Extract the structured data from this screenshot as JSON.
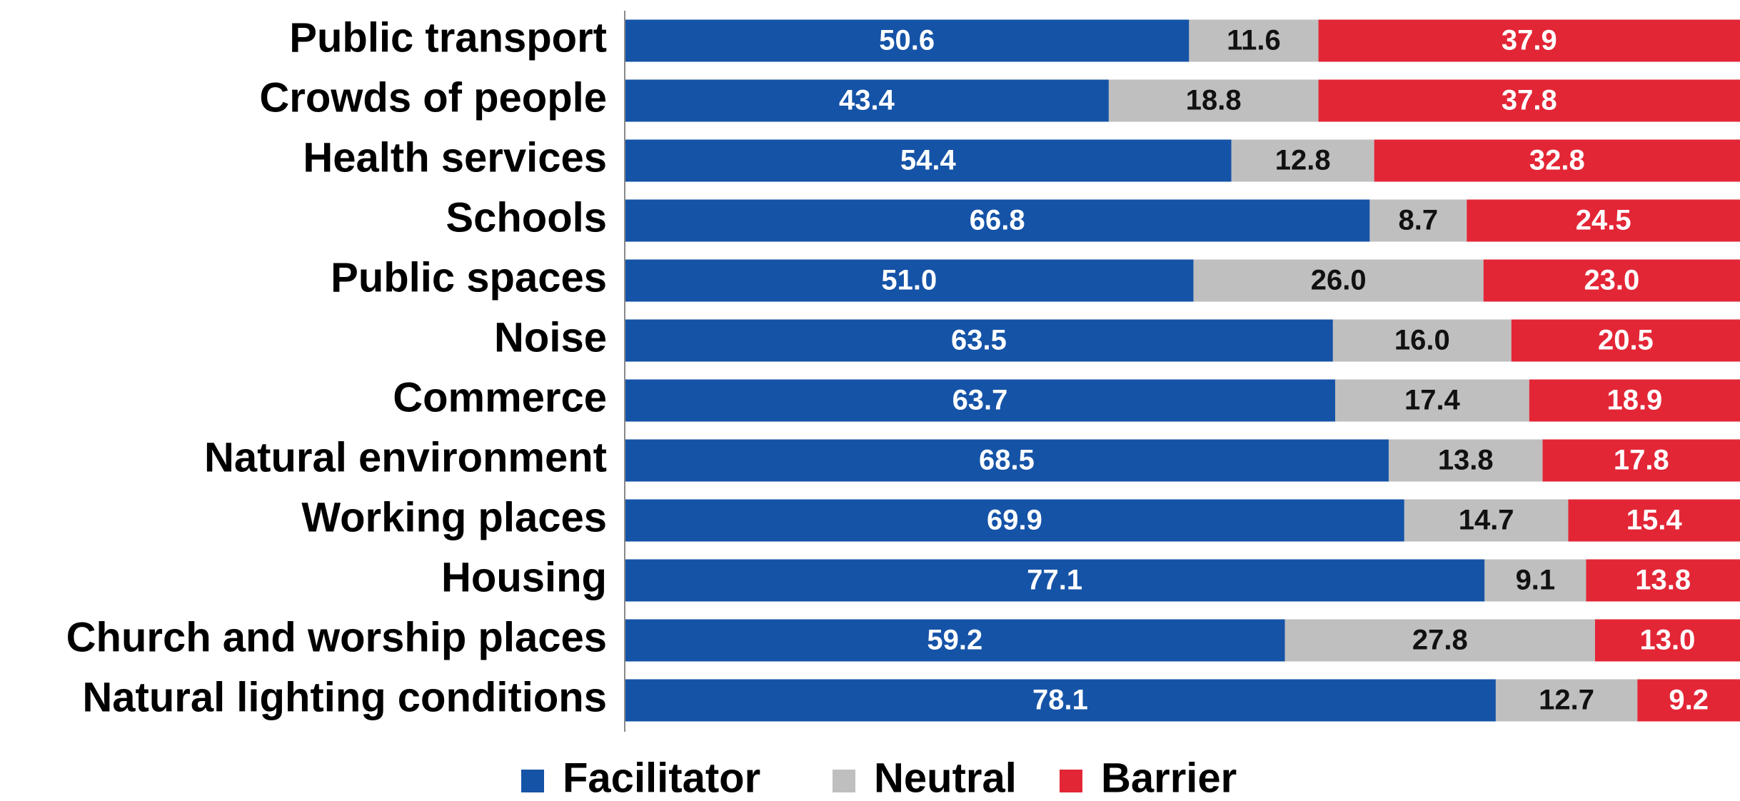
{
  "chart_data": {
    "type": "stacked-bar-horizontal",
    "categories": [
      "Public transport",
      "Crowds of people",
      "Health services",
      "Schools",
      "Public spaces",
      "Noise",
      "Commerce",
      "Natural environment",
      "Working places",
      "Housing",
      "Church and worship places",
      "Natural lighting conditions"
    ],
    "xlim": [
      0,
      100
    ],
    "series": [
      {
        "name": "Facilitator",
        "color": "#1553a7",
        "values": [
          50.6,
          43.4,
          54.4,
          66.8,
          51.0,
          63.5,
          63.7,
          68.5,
          69.9,
          77.1,
          59.2,
          78.1
        ],
        "value_labels": [
          "50.6",
          "43.4",
          "54.4",
          "66.8",
          "51.0",
          "63.5",
          "63.7",
          "68.5",
          "69.9",
          "77.1",
          "59.2",
          "78.1"
        ]
      },
      {
        "name": "Neutral",
        "color": "#bfbfbf",
        "values": [
          11.6,
          18.8,
          12.8,
          8.7,
          26.0,
          16.0,
          17.4,
          13.8,
          14.7,
          9.1,
          27.8,
          12.7
        ],
        "value_labels": [
          "11.6",
          "18.8",
          "12.8",
          "8.7",
          "26.0",
          "16.0",
          "17.4",
          "13.8",
          "14.7",
          "9.1",
          "27.8",
          "12.7"
        ]
      },
      {
        "name": "Barrier",
        "color": "#e32636",
        "values": [
          37.9,
          37.8,
          32.8,
          24.5,
          23.0,
          20.5,
          18.9,
          17.8,
          15.4,
          13.8,
          13.0,
          9.2
        ],
        "value_labels": [
          "37.9",
          "37.8",
          "32.8",
          "24.5",
          "23.0",
          "20.5",
          "18.9",
          "17.8",
          "15.4",
          "13.8",
          "13.0",
          "9.2"
        ]
      }
    ],
    "legend": "bottom"
  }
}
